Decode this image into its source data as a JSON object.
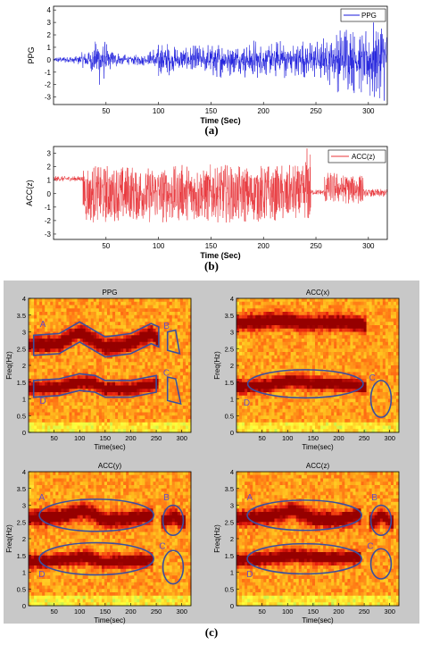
{
  "captions": {
    "a": "(a)",
    "b": "(b)",
    "c": "(c)"
  },
  "colors": {
    "ppg_line": "#1a1adc",
    "acc_line": "#e8353a",
    "panel_bg": "#c8c8c8",
    "annotation": "#3a4fa0",
    "label_purple": "#6a4fbf"
  },
  "chart_data": [
    {
      "type": "line",
      "panel": "a",
      "legend": "PPG",
      "legend_position": "top-right",
      "xlabel": "Time (Sec)",
      "ylabel": "PPG",
      "xlim": [
        0,
        318
      ],
      "ylim": [
        -3.6,
        4.3
      ],
      "xticks": [
        50,
        100,
        150,
        200,
        250,
        300
      ],
      "yticks": [
        -3,
        -2,
        -1,
        0,
        1,
        2,
        3,
        4
      ],
      "envelope": {
        "t": [
          0,
          20,
          35,
          45,
          55,
          70,
          90,
          100,
          105,
          120,
          140,
          160,
          175,
          190,
          200,
          210,
          225,
          240,
          250,
          260,
          275,
          285,
          295,
          300,
          310,
          318
        ],
        "amp": [
          0.25,
          0.3,
          1.0,
          2.3,
          0.8,
          0.4,
          0.5,
          1.8,
          1.6,
          0.9,
          1.3,
          1.6,
          1.2,
          1.8,
          1.3,
          1.5,
          1.8,
          1.7,
          1.5,
          2.0,
          2.9,
          3.0,
          2.8,
          3.6,
          3.8,
          3.2
        ]
      }
    },
    {
      "type": "line",
      "panel": "b",
      "legend": "ACC(z)",
      "legend_position": "top-right",
      "xlabel": "Time (Sec)",
      "ylabel": "ACC(z)",
      "xlim": [
        0,
        318
      ],
      "ylim": [
        -3.4,
        3.5
      ],
      "xticks": [
        50,
        100,
        150,
        200,
        250,
        300
      ],
      "yticks": [
        -3,
        -2,
        -1,
        0,
        1,
        2,
        3
      ],
      "segments": [
        {
          "t0": 0,
          "t1": 28,
          "offset": 1.1,
          "amp": 0.2
        },
        {
          "t0": 28,
          "t1": 240,
          "offset": 0.0,
          "amp": 2.2
        },
        {
          "t0": 240,
          "t1": 245,
          "offset": 0.5,
          "amp": 3.0
        },
        {
          "t0": 245,
          "t1": 258,
          "offset": 0.1,
          "amp": 0.2
        },
        {
          "t0": 258,
          "t1": 295,
          "offset": 0.4,
          "amp": 1.2
        },
        {
          "t0": 295,
          "t1": 318,
          "offset": 0.05,
          "amp": 0.3
        }
      ]
    },
    {
      "type": "heatmap",
      "panel": "c1",
      "title": "PPG",
      "xlabel": "Time(sec)",
      "ylabel": "Freq(Hz)",
      "xlim": [
        0,
        318
      ],
      "ylim": [
        0,
        4
      ],
      "xticks": [
        50,
        100,
        150,
        200,
        250,
        300
      ],
      "yticks": [
        0,
        0.5,
        1,
        1.5,
        2,
        2.5,
        3,
        3.5,
        4
      ],
      "bands": [
        {
          "t": [
            0,
            60,
            100,
            150,
            200,
            240,
            250
          ],
          "f": [
            2.6,
            2.65,
            3.0,
            2.55,
            2.65,
            2.95,
            2.8
          ],
          "width": 0.22
        },
        {
          "t": [
            0,
            60,
            100,
            130,
            150,
            200,
            250
          ],
          "f": [
            1.3,
            1.35,
            1.5,
            1.45,
            1.3,
            1.3,
            1.45
          ],
          "width": 0.18
        }
      ],
      "annotations": [
        {
          "label": "A",
          "shape": "band",
          "t": [
            10,
            60,
            100,
            150,
            200,
            240,
            255
          ],
          "f": [
            2.6,
            2.65,
            3.0,
            2.55,
            2.65,
            2.95,
            2.85
          ],
          "half": 0.3
        },
        {
          "label": "D",
          "shape": "band",
          "t": [
            10,
            60,
            100,
            130,
            150,
            200,
            250
          ],
          "f": [
            1.3,
            1.35,
            1.5,
            1.45,
            1.3,
            1.3,
            1.45
          ],
          "half": 0.25
        },
        {
          "label": "B",
          "shape": "poly",
          "pts": [
            [
              272,
              3.0
            ],
            [
              288,
              3.05
            ],
            [
              296,
              2.35
            ],
            [
              272,
              2.45
            ]
          ]
        },
        {
          "label": "C",
          "shape": "poly",
          "pts": [
            [
              272,
              1.65
            ],
            [
              288,
              1.6
            ],
            [
              298,
              0.85
            ],
            [
              272,
              0.95
            ]
          ]
        }
      ],
      "labels": [
        {
          "text": "A",
          "t": 28,
          "f": 3.15
        },
        {
          "text": "B",
          "t": 270,
          "f": 3.1
        },
        {
          "text": "C",
          "t": 270,
          "f": 1.7
        },
        {
          "text": "D",
          "t": 28,
          "f": 0.85
        }
      ]
    },
    {
      "type": "heatmap",
      "panel": "c2",
      "title": "ACC(x)",
      "xlabel": "Time(sec)",
      "ylabel": "Freq(Hz)",
      "xlim": [
        0,
        318
      ],
      "ylim": [
        0,
        4
      ],
      "xticks": [
        50,
        100,
        150,
        200,
        250,
        300
      ],
      "yticks": [
        0,
        0.5,
        1,
        1.5,
        2,
        2.5,
        3,
        3.5,
        4
      ],
      "bands": [
        {
          "t": [
            0,
            60,
            110,
            150,
            200,
            250
          ],
          "f": [
            1.35,
            1.4,
            1.55,
            1.45,
            1.45,
            1.35
          ],
          "width": 0.18
        },
        {
          "t": [
            0,
            80,
            150,
            200,
            250
          ],
          "f": [
            3.25,
            3.35,
            3.25,
            3.3,
            3.2
          ],
          "width": 0.22
        }
      ],
      "annotations": [
        {
          "label": "D",
          "shape": "ellipse",
          "t": 135,
          "f": 1.45,
          "rt": 113,
          "rf": 0.42
        },
        {
          "label": "C",
          "shape": "ellipse",
          "t": 283,
          "f": 1.0,
          "rt": 20,
          "rf": 0.55
        }
      ],
      "labels": [
        {
          "text": "C",
          "t": 266,
          "f": 1.55
        },
        {
          "text": "D",
          "t": 20,
          "f": 0.8
        }
      ]
    },
    {
      "type": "heatmap",
      "panel": "c3",
      "title": "ACC(y)",
      "xlabel": "Time(sec)",
      "ylabel": "Freq(Hz)",
      "xlim": [
        0,
        318
      ],
      "ylim": [
        0,
        4
      ],
      "xticks": [
        50,
        100,
        150,
        200,
        250,
        300
      ],
      "yticks": [
        0,
        0.5,
        1,
        1.5,
        2,
        2.5,
        3,
        3.5,
        4
      ],
      "bands": [
        {
          "t": [
            0,
            60,
            110,
            150,
            200,
            240
          ],
          "f": [
            2.6,
            2.65,
            2.85,
            2.55,
            2.6,
            2.7
          ],
          "width": 0.22
        },
        {
          "t": [
            0,
            60,
            110,
            150,
            200,
            240
          ],
          "f": [
            1.3,
            1.35,
            1.45,
            1.3,
            1.35,
            1.35
          ],
          "width": 0.18
        },
        {
          "t": [
            265,
            285,
            300
          ],
          "f": [
            2.5,
            2.7,
            2.5
          ],
          "width": 0.2
        }
      ],
      "annotations": [
        {
          "label": "A",
          "shape": "ellipse",
          "t": 133,
          "f": 2.7,
          "rt": 112,
          "rf": 0.48
        },
        {
          "label": "D",
          "shape": "ellipse",
          "t": 133,
          "f": 1.4,
          "rt": 112,
          "rf": 0.48
        },
        {
          "label": "B",
          "shape": "ellipse",
          "t": 283,
          "f": 2.55,
          "rt": 20,
          "rf": 0.45
        },
        {
          "label": "C",
          "shape": "ellipse",
          "t": 283,
          "f": 1.15,
          "rt": 20,
          "rf": 0.5
        }
      ],
      "labels": [
        {
          "text": "A",
          "t": 26,
          "f": 3.15
        },
        {
          "text": "B",
          "t": 270,
          "f": 3.15
        },
        {
          "text": "C",
          "t": 262,
          "f": 1.7
        },
        {
          "text": "D",
          "t": 26,
          "f": 0.85
        }
      ]
    },
    {
      "type": "heatmap",
      "panel": "c4",
      "title": "ACC(z)",
      "xlabel": "Time(sec)",
      "ylabel": "Freq(Hz)",
      "xlim": [
        0,
        318
      ],
      "ylim": [
        0,
        4
      ],
      "xticks": [
        50,
        100,
        150,
        200,
        250,
        300
      ],
      "yticks": [
        0,
        0.5,
        1,
        1.5,
        2,
        2.5,
        3,
        3.5,
        4
      ],
      "bands": [
        {
          "t": [
            0,
            60,
            110,
            150,
            200,
            240
          ],
          "f": [
            2.6,
            2.65,
            2.85,
            2.6,
            2.55,
            2.7
          ],
          "width": 0.22
        },
        {
          "t": [
            0,
            60,
            110,
            150,
            200,
            240
          ],
          "f": [
            1.35,
            1.4,
            1.5,
            1.45,
            1.4,
            1.45
          ],
          "width": 0.18
        },
        {
          "t": [
            265,
            285,
            300
          ],
          "f": [
            2.5,
            2.7,
            2.5
          ],
          "width": 0.2
        }
      ],
      "annotations": [
        {
          "label": "A",
          "shape": "ellipse",
          "t": 133,
          "f": 2.7,
          "rt": 112,
          "rf": 0.45
        },
        {
          "label": "D",
          "shape": "ellipse",
          "t": 133,
          "f": 1.4,
          "rt": 112,
          "rf": 0.45
        },
        {
          "label": "B",
          "shape": "ellipse",
          "t": 283,
          "f": 2.55,
          "rt": 20,
          "rf": 0.45
        },
        {
          "label": "C",
          "shape": "ellipse",
          "t": 283,
          "f": 1.25,
          "rt": 20,
          "rf": 0.45
        }
      ],
      "labels": [
        {
          "text": "A",
          "t": 26,
          "f": 3.15
        },
        {
          "text": "B",
          "t": 270,
          "f": 3.15
        },
        {
          "text": "C",
          "t": 262,
          "f": 1.7
        },
        {
          "text": "D",
          "t": 26,
          "f": 0.85
        }
      ]
    }
  ]
}
